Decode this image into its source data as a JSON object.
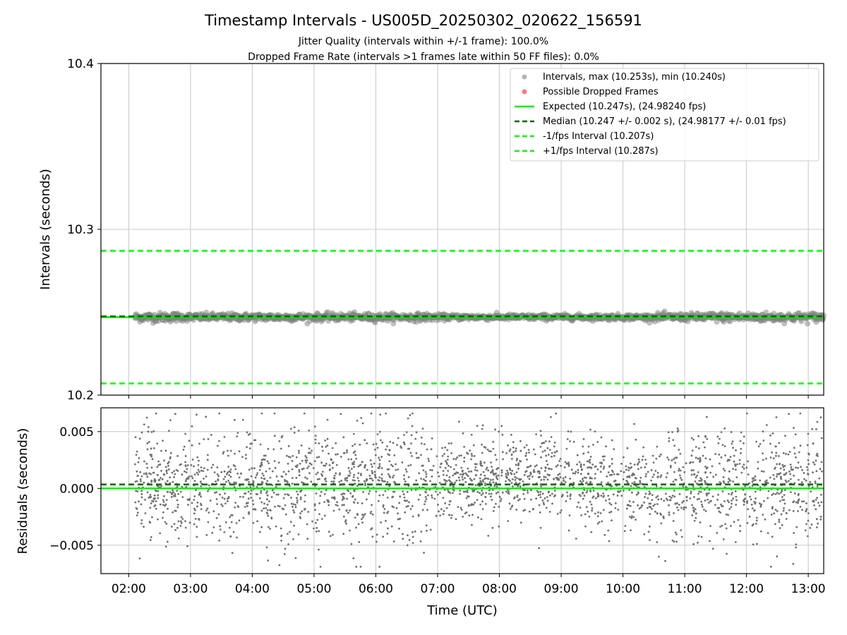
{
  "title": "Timestamp Intervals - US005D_20250302_020622_156591",
  "subtitle_1": "Jitter Quality (intervals within +/-1 frame): 100.0%",
  "subtitle_2": "Dropped Frame Rate (intervals >1 frames late within 50 FF files): 0.0%",
  "colors": {
    "points": "#808080",
    "dropped": "#ff6b6b",
    "expected": "#00ee00",
    "median": "#006400",
    "fps_band": "#00ff00",
    "grid": "#c8c8c8"
  },
  "chart_data": [
    {
      "type": "scatter",
      "panel": "top",
      "xlabel": "",
      "ylabel": "Intervals (seconds)",
      "ylim": [
        10.2,
        10.4
      ],
      "yticks": [
        10.2,
        10.3,
        10.4
      ],
      "ytick_labels": [
        "10.2",
        "10.3",
        "10.4"
      ],
      "grid": true,
      "legend_placement": "top-right",
      "x_range_hours": [
        2.1,
        13.25
      ],
      "series": [
        {
          "name": "Intervals, max (10.253s), min (10.240s)",
          "kind": "scatter",
          "center": 10.247,
          "spread": 0.0025,
          "max": 10.253,
          "min": 10.24
        },
        {
          "name": "Possible Dropped Frames",
          "kind": "scatter",
          "values": []
        }
      ],
      "reference_lines": [
        {
          "name": "Expected (10.247s), (24.98240 fps)",
          "y": 10.247,
          "style": "solid"
        },
        {
          "name": "Median (10.247 +/- 0.002 s), (24.98177 +/- 0.01 fps)",
          "y": 10.2475,
          "style": "dashed"
        },
        {
          "name": "-1/fps Interval (10.207s)",
          "y": 10.207,
          "style": "dashed"
        },
        {
          "name": "+1/fps Interval (10.287s)",
          "y": 10.287,
          "style": "dashed"
        }
      ]
    },
    {
      "type": "scatter",
      "panel": "bottom",
      "xlabel": "Time (UTC)",
      "ylabel": "Residuals (seconds)",
      "ylim": [
        -0.0075,
        0.0071
      ],
      "yticks": [
        -0.005,
        0.0,
        0.005
      ],
      "ytick_labels": [
        "−0.005",
        "0.000",
        "0.005"
      ],
      "xlim_hours": [
        1.55,
        13.25
      ],
      "xticks": [
        "02:00",
        "03:00",
        "04:00",
        "05:00",
        "06:00",
        "07:00",
        "08:00",
        "09:00",
        "10:00",
        "11:00",
        "12:00",
        "13:00"
      ],
      "grid": true,
      "series": [
        {
          "name": "Residuals",
          "kind": "scatter",
          "center": 0.0003,
          "spread": 0.0025
        }
      ],
      "reference_lines": [
        {
          "name": "Expected",
          "y": 0.0,
          "style": "solid"
        },
        {
          "name": "Median",
          "y": 0.00035,
          "style": "dashed"
        }
      ]
    }
  ]
}
